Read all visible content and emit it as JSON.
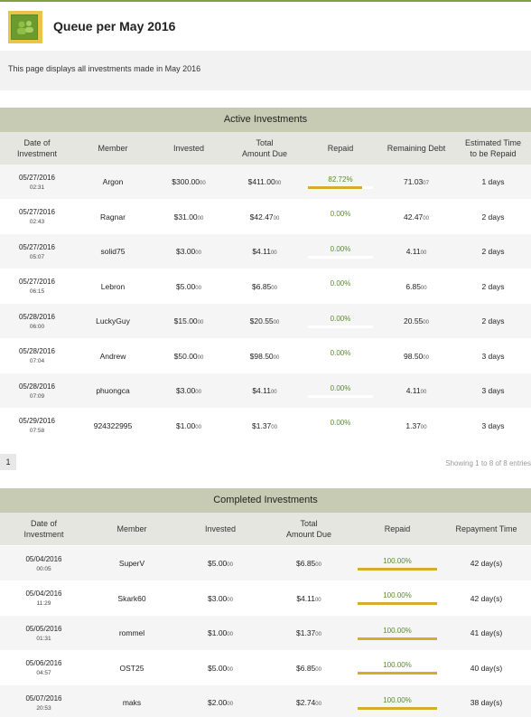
{
  "header": {
    "title": "Queue per May 2016",
    "logo_icon": "users-group-icon"
  },
  "intro": {
    "text": "This page displays all investments made in May 2016"
  },
  "active": {
    "title": "Active Investments",
    "columns": [
      "Date of\nInvestment",
      "Member",
      "Invested",
      "Total\nAmount Due",
      "Repaid",
      "Remaining Debt",
      "Estimated Time\nto be Repaid"
    ],
    "rows": [
      {
        "date": "05/27/2016",
        "time": "02:31",
        "member": "Argon",
        "invested": "$300.00",
        "invested_cents": "00",
        "due": "$411.00",
        "due_cents": "00",
        "repaid": "82.72%",
        "repaid_value": 0.8272,
        "remaining": "71.03",
        "remaining_cents": "07",
        "eta": "1 days"
      },
      {
        "date": "05/27/2016",
        "time": "02:43",
        "member": "Ragnar",
        "invested": "$31.00",
        "invested_cents": "00",
        "due": "$42.47",
        "due_cents": "00",
        "repaid": "0.00%",
        "repaid_value": 0,
        "remaining": "42.47",
        "remaining_cents": "00",
        "eta": "2 days"
      },
      {
        "date": "05/27/2016",
        "time": "05:07",
        "member": "solid75",
        "invested": "$3.00",
        "invested_cents": "00",
        "due": "$4.11",
        "due_cents": "00",
        "repaid": "0.00%",
        "repaid_value": 0,
        "remaining": "4.11",
        "remaining_cents": "00",
        "eta": "2 days"
      },
      {
        "date": "05/27/2016",
        "time": "06:15",
        "member": "Lebron",
        "invested": "$5.00",
        "invested_cents": "00",
        "due": "$6.85",
        "due_cents": "00",
        "repaid": "0.00%",
        "repaid_value": 0,
        "remaining": "6.85",
        "remaining_cents": "00",
        "eta": "2 days"
      },
      {
        "date": "05/28/2016",
        "time": "06:00",
        "member": "LuckyGuy",
        "invested": "$15.00",
        "invested_cents": "00",
        "due": "$20.55",
        "due_cents": "00",
        "repaid": "0.00%",
        "repaid_value": 0,
        "remaining": "20.55",
        "remaining_cents": "00",
        "eta": "2 days"
      },
      {
        "date": "05/28/2016",
        "time": "07:04",
        "member": "Andrew",
        "invested": "$50.00",
        "invested_cents": "00",
        "due": "$98.50",
        "due_cents": "00",
        "repaid": "0.00%",
        "repaid_value": 0,
        "remaining": "98.50",
        "remaining_cents": "00",
        "eta": "3 days"
      },
      {
        "date": "05/28/2016",
        "time": "07:09",
        "member": "phuongca",
        "invested": "$3.00",
        "invested_cents": "00",
        "due": "$4.11",
        "due_cents": "00",
        "repaid": "0.00%",
        "repaid_value": 0,
        "remaining": "4.11",
        "remaining_cents": "00",
        "eta": "3 days"
      },
      {
        "date": "05/29/2016",
        "time": "07:58",
        "member": "924322995",
        "invested": "$1.00",
        "invested_cents": "00",
        "due": "$1.37",
        "due_cents": "00",
        "repaid": "0.00%",
        "repaid_value": 0,
        "remaining": "1.37",
        "remaining_cents": "00",
        "eta": "3 days"
      }
    ]
  },
  "pagination": {
    "page": "1",
    "showing": "Showing 1 to 8 of 8 entries"
  },
  "completed": {
    "title": "Completed Investments",
    "columns": [
      "Date of\nInvestment",
      "Member",
      "Invested",
      "Total\nAmount Due",
      "Repaid",
      "Repayment Time"
    ],
    "rows": [
      {
        "date": "05/04/2016",
        "time": "00:05",
        "member": "SuperV",
        "invested": "$5.00",
        "invested_cents": "00",
        "due": "$6.85",
        "due_cents": "00",
        "repaid": "100.00%",
        "repaid_value": 1,
        "time_taken": "42 day(s)"
      },
      {
        "date": "05/04/2016",
        "time": "11:29",
        "member": "Skark60",
        "invested": "$3.00",
        "invested_cents": "00",
        "due": "$4.11",
        "due_cents": "00",
        "repaid": "100.00%",
        "repaid_value": 1,
        "time_taken": "42 day(s)"
      },
      {
        "date": "05/05/2016",
        "time": "01:31",
        "member": "rommel",
        "invested": "$1.00",
        "invested_cents": "00",
        "due": "$1.37",
        "due_cents": "00",
        "repaid": "100.00%",
        "repaid_value": 1,
        "time_taken": "41 day(s)"
      },
      {
        "date": "05/06/2016",
        "time": "04:57",
        "member": "OST25",
        "invested": "$5.00",
        "invested_cents": "00",
        "due": "$6.85",
        "due_cents": "00",
        "repaid": "100.00%",
        "repaid_value": 1,
        "time_taken": "40 day(s)"
      },
      {
        "date": "05/07/2016",
        "time": "20:53",
        "member": "maks",
        "invested": "$2.00",
        "invested_cents": "00",
        "due": "$2.74",
        "due_cents": "00",
        "repaid": "100.00%",
        "repaid_value": 1,
        "time_taken": "38 day(s)"
      }
    ]
  },
  "colors": {
    "accent_green": "#7fa33a",
    "progress_gold": "#d6ac2a",
    "percent_green": "#5a8c2a",
    "section_bar": "#c8cbb3"
  }
}
